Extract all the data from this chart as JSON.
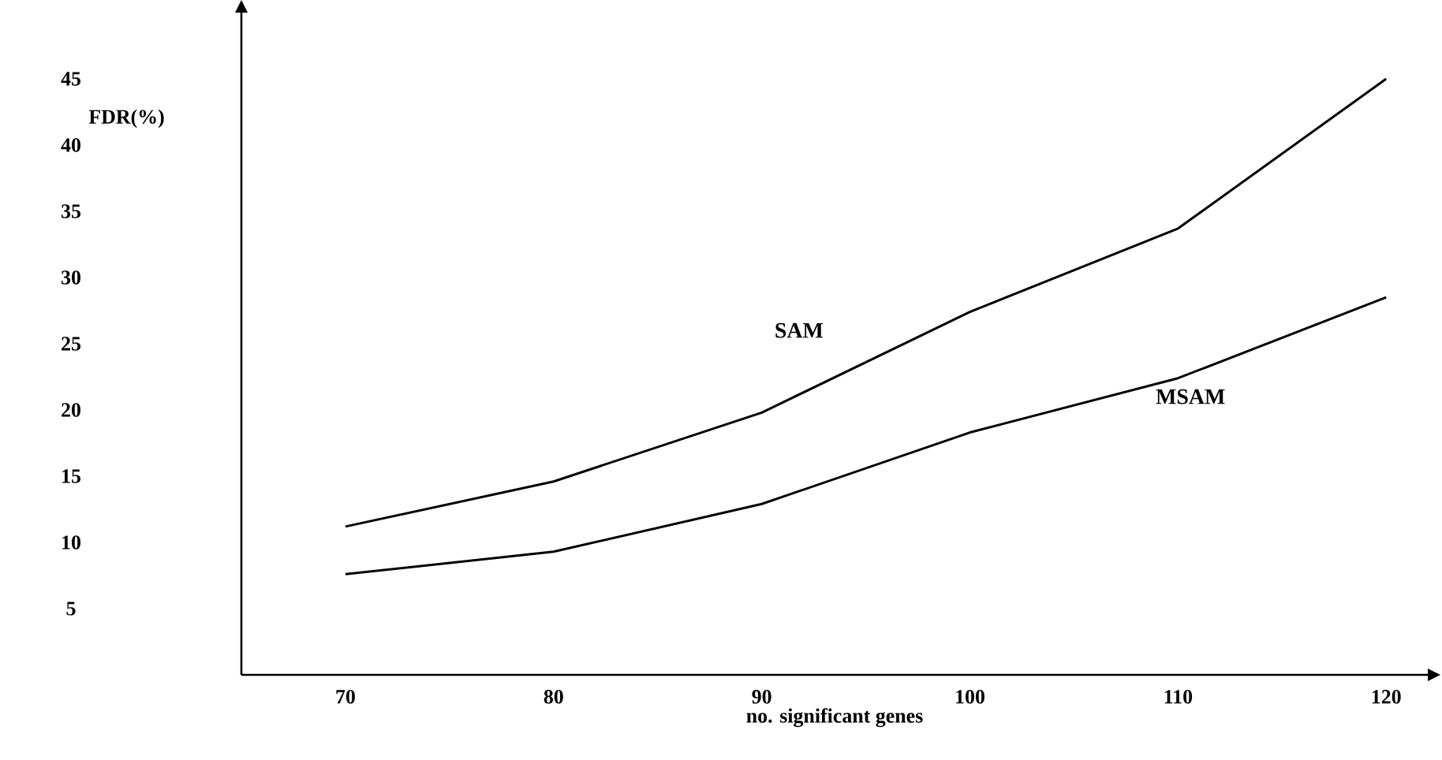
{
  "chart_data": {
    "type": "line",
    "xlabel": "no. significant genes",
    "ylabel": "FDR(%)",
    "x": [
      70,
      80,
      90,
      100,
      110,
      120
    ],
    "series": [
      {
        "name": "SAM",
        "color": "#000000",
        "values": [
          11.2,
          14.6,
          19.8,
          27.4,
          33.7,
          45.0
        ]
      },
      {
        "name": "MSAM",
        "color": "#000000",
        "values": [
          7.6,
          9.3,
          12.9,
          18.3,
          22.4,
          28.5
        ]
      }
    ],
    "xlim": [
      65,
      122
    ],
    "ylim": [
      0,
      50
    ],
    "xticks": [
      70,
      80,
      90,
      100,
      110,
      120
    ],
    "yticks": [
      5,
      10,
      15,
      20,
      25,
      30,
      35,
      40,
      45
    ],
    "grid": false,
    "legend": false,
    "marker": "none",
    "line_style": "solid"
  }
}
